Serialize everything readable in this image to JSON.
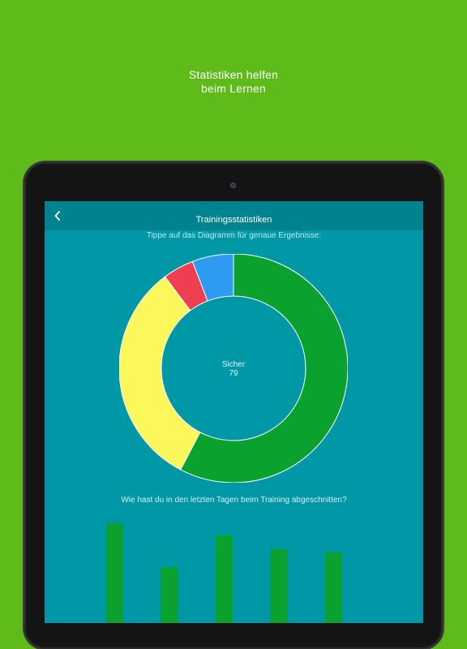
{
  "promo": {
    "line1": "Statistiken helfen",
    "line2": "beim Lernen"
  },
  "navbar": {
    "title": "Trainingsstatistiken",
    "back_icon": "chevron-left-icon"
  },
  "hint": "Tippe auf das Diagramm für genaue Ergebnisse:",
  "donut": {
    "center_label": "Sicher",
    "center_value": "79",
    "segments": [
      {
        "value": 79,
        "color": "#0aa12e"
      },
      {
        "value": 44,
        "color": "#fcf75a"
      },
      {
        "value": 6,
        "color": "#ef3d52"
      },
      {
        "value": 8,
        "color": "#2f9bf0"
      }
    ]
  },
  "question": "Wie hast du in den letzten Tagen beim Training abgeschnitten?",
  "chart_data": {
    "type": "bar",
    "values": [
      100,
      56,
      88,
      74,
      71
    ],
    "color": "#0aa12e"
  },
  "colors": {
    "background": "#5fbb1a",
    "screen": "#0097a7",
    "navbar": "#00838f"
  }
}
